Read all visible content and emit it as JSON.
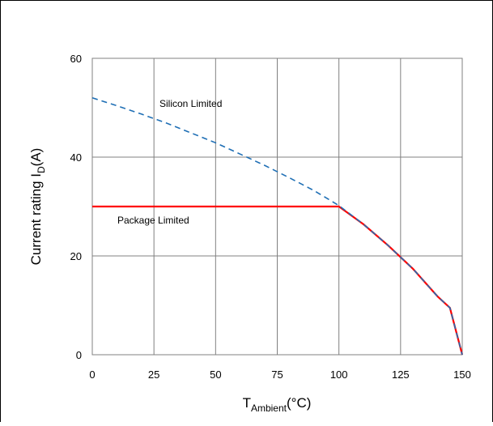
{
  "chart_data": {
    "type": "line",
    "x_ticks": [
      "0",
      "25",
      "50",
      "75",
      "100",
      "125",
      "150"
    ],
    "y_ticks": [
      "0",
      "20",
      "40",
      "60"
    ],
    "xlim": [
      0,
      150
    ],
    "ylim": [
      0,
      60
    ],
    "grid": true,
    "xlabel": {
      "main": "T",
      "sub": "Ambient",
      "suffix": "(°C)"
    },
    "ylabel": {
      "main": "Current rating I",
      "sub": "D",
      "suffix": "(A)"
    },
    "series": [
      {
        "name": "Silicon Limited",
        "style": "dashed",
        "color": "#1f6fb5",
        "x": [
          0,
          10,
          20,
          30,
          40,
          50,
          60,
          70,
          80,
          90,
          100,
          110,
          120,
          130,
          140,
          145,
          150
        ],
        "y": [
          52,
          50.4,
          48.7,
          46.9,
          44.9,
          42.9,
          40.6,
          38.3,
          35.8,
          33.2,
          30.2,
          26.4,
          22.1,
          17.4,
          11.8,
          9.5,
          0
        ]
      },
      {
        "name": "Package Limited",
        "style": "solid",
        "color": "#ff0000",
        "x": [
          0,
          100,
          110,
          120,
          130,
          140,
          145,
          150
        ],
        "y": [
          30,
          30,
          26.4,
          22.1,
          17.4,
          11.8,
          9.5,
          0
        ]
      }
    ],
    "annotations": [
      "Silicon Limited",
      "Package Limited"
    ]
  }
}
